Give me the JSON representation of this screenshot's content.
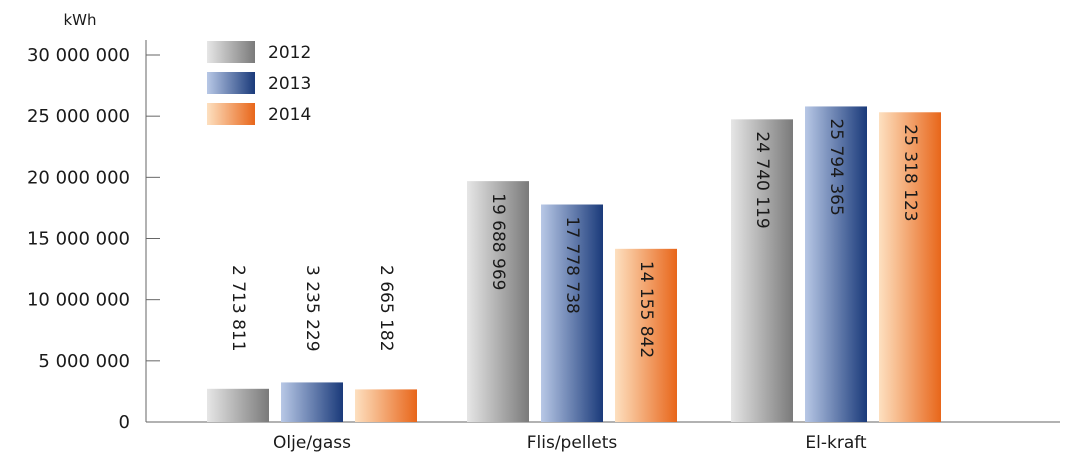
{
  "chart_data": {
    "type": "bar",
    "ylabel": "kWh",
    "ylim": [
      0,
      30000000
    ],
    "y_ticks": [
      {
        "value": 0,
        "label": "0"
      },
      {
        "value": 5000000,
        "label": "5 000 000"
      },
      {
        "value": 10000000,
        "label": "10 000 000"
      },
      {
        "value": 15000000,
        "label": "15 000 000"
      },
      {
        "value": 20000000,
        "label": "20 000 000"
      },
      {
        "value": 25000000,
        "label": "25 000 000"
      },
      {
        "value": 30000000,
        "label": "30 000 000"
      }
    ],
    "categories": [
      "Olje/gass",
      "Flis/pellets",
      "El-kraft"
    ],
    "series": [
      {
        "name": "2012",
        "values": [
          2713811,
          19688969,
          24740119
        ],
        "labels": [
          "2 713 811",
          "19 688 969",
          "24 740 119"
        ],
        "color_light": "#e6e6e6",
        "color_dark": "#7a7a7a",
        "label_on_bar_color": "#1a1a1a"
      },
      {
        "name": "2013",
        "values": [
          3235229,
          17778738,
          25794365
        ],
        "labels": [
          "3 235 229",
          "17 778 738",
          "25 794 365"
        ],
        "color_light": "#b8c8e6",
        "color_dark": "#1a3a7a",
        "label_on_bar_color": "#ffffff"
      },
      {
        "name": "2014",
        "values": [
          2665182,
          14155842,
          25318123
        ],
        "labels": [
          "2 665 182",
          "14 155 842",
          "25 318 123"
        ],
        "color_light": "#fde0c0",
        "color_dark": "#e8661a",
        "label_on_bar_color": "#1a1a1a"
      }
    ],
    "legend_position": "top-left",
    "grid": false
  }
}
